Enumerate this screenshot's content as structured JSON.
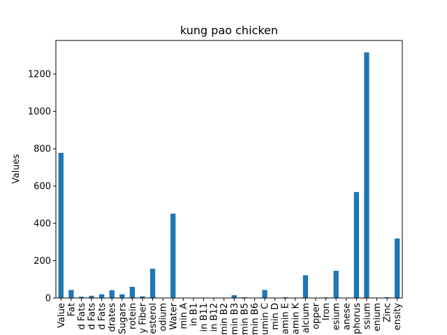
{
  "chart_data": {
    "type": "bar",
    "title": "kung pao chicken",
    "xlabel": "",
    "ylabel": "Values",
    "ylim": [
      0,
      1380
    ],
    "yticks": [
      0,
      200,
      400,
      600,
      800,
      1000,
      1200
    ],
    "bar_color": "#1f77b4",
    "categories": [
      "Value",
      "Fat",
      "d Fats",
      "d Fats",
      "d Fats",
      "drates",
      "Sugars",
      "rotein",
      "y Fiber",
      "esterol",
      "odium",
      "Water",
      "min A",
      "in B1",
      "in B11",
      "in B12",
      "min B2",
      "min B3",
      "min B5",
      "min B6",
      "umin C",
      "min D",
      "amin E",
      "amin K",
      "alcium",
      "opper",
      "Iron",
      "esium",
      "anese",
      "phorus",
      "ssium",
      "enium",
      "Zinc",
      "ensity"
    ],
    "values": [
      778,
      43,
      7,
      12,
      20,
      42,
      20,
      60,
      9,
      157,
      0,
      452,
      0,
      0,
      0,
      0,
      0,
      15,
      4,
      1,
      43,
      0,
      4,
      1,
      122,
      0,
      3,
      146,
      0,
      568,
      1316,
      0,
      4,
      319
    ]
  }
}
